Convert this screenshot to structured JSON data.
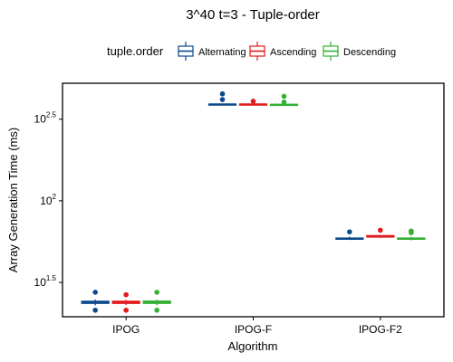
{
  "chart_data": {
    "type": "boxplot",
    "title": "3^40 t=3 - Tuple-order",
    "xlabel": "Algorithm",
    "ylabel": "Array Generation Time (ms)",
    "y_scale": "log10",
    "ylim_log10": [
      1.29,
      2.72
    ],
    "y_ticks": [
      {
        "log10": 1.5,
        "base": "10",
        "exp": "1.5"
      },
      {
        "log10": 2.0,
        "base": "10",
        "exp": "2"
      },
      {
        "log10": 2.5,
        "base": "10",
        "exp": "2.5"
      }
    ],
    "categories": [
      "IPOG",
      "IPOG-F",
      "IPOG-F2"
    ],
    "legend": {
      "title": "tuple.order",
      "position": "top"
    },
    "series": [
      {
        "name": "Alternating",
        "color": "#0b4a8c",
        "boxes": [
          {
            "q1": 1.372,
            "median": 1.378,
            "q3": 1.385,
            "whisker_low": 1.36,
            "whisker_high": 1.395,
            "outliers": [
              1.44,
              1.33
            ]
          },
          {
            "q1": 2.59,
            "median": 2.59,
            "q3": 2.592,
            "whisker_low": 2.588,
            "whisker_high": 2.594,
            "outliers": [
              2.655,
              2.62
            ]
          },
          {
            "q1": 1.765,
            "median": 1.768,
            "q3": 1.772,
            "whisker_low": 1.76,
            "whisker_high": 1.78,
            "outliers": [
              1.81
            ]
          }
        ]
      },
      {
        "name": "Ascending",
        "color": "#e31a1c",
        "boxes": [
          {
            "q1": 1.372,
            "median": 1.378,
            "q3": 1.385,
            "whisker_low": 1.362,
            "whisker_high": 1.393,
            "outliers": [
              1.425,
              1.33
            ]
          },
          {
            "q1": 2.588,
            "median": 2.59,
            "q3": 2.592,
            "whisker_low": 2.586,
            "whisker_high": 2.595,
            "outliers": [
              2.61
            ]
          },
          {
            "q1": 1.778,
            "median": 1.782,
            "q3": 1.787,
            "whisker_low": 1.774,
            "whisker_high": 1.79,
            "outliers": [
              1.82
            ]
          }
        ]
      },
      {
        "name": "Descending",
        "color": "#33b033",
        "boxes": [
          {
            "q1": 1.372,
            "median": 1.38,
            "q3": 1.386,
            "whisker_low": 1.36,
            "whisker_high": 1.395,
            "outliers": [
              1.44,
              1.33
            ]
          },
          {
            "q1": 2.586,
            "median": 2.588,
            "q3": 2.59,
            "whisker_low": 2.584,
            "whisker_high": 2.593,
            "outliers": [
              2.64,
              2.605
            ]
          },
          {
            "q1": 1.765,
            "median": 1.768,
            "q3": 1.772,
            "whisker_low": 1.758,
            "whisker_high": 1.78,
            "outliers": [
              1.815,
              1.805
            ]
          }
        ]
      }
    ]
  }
}
